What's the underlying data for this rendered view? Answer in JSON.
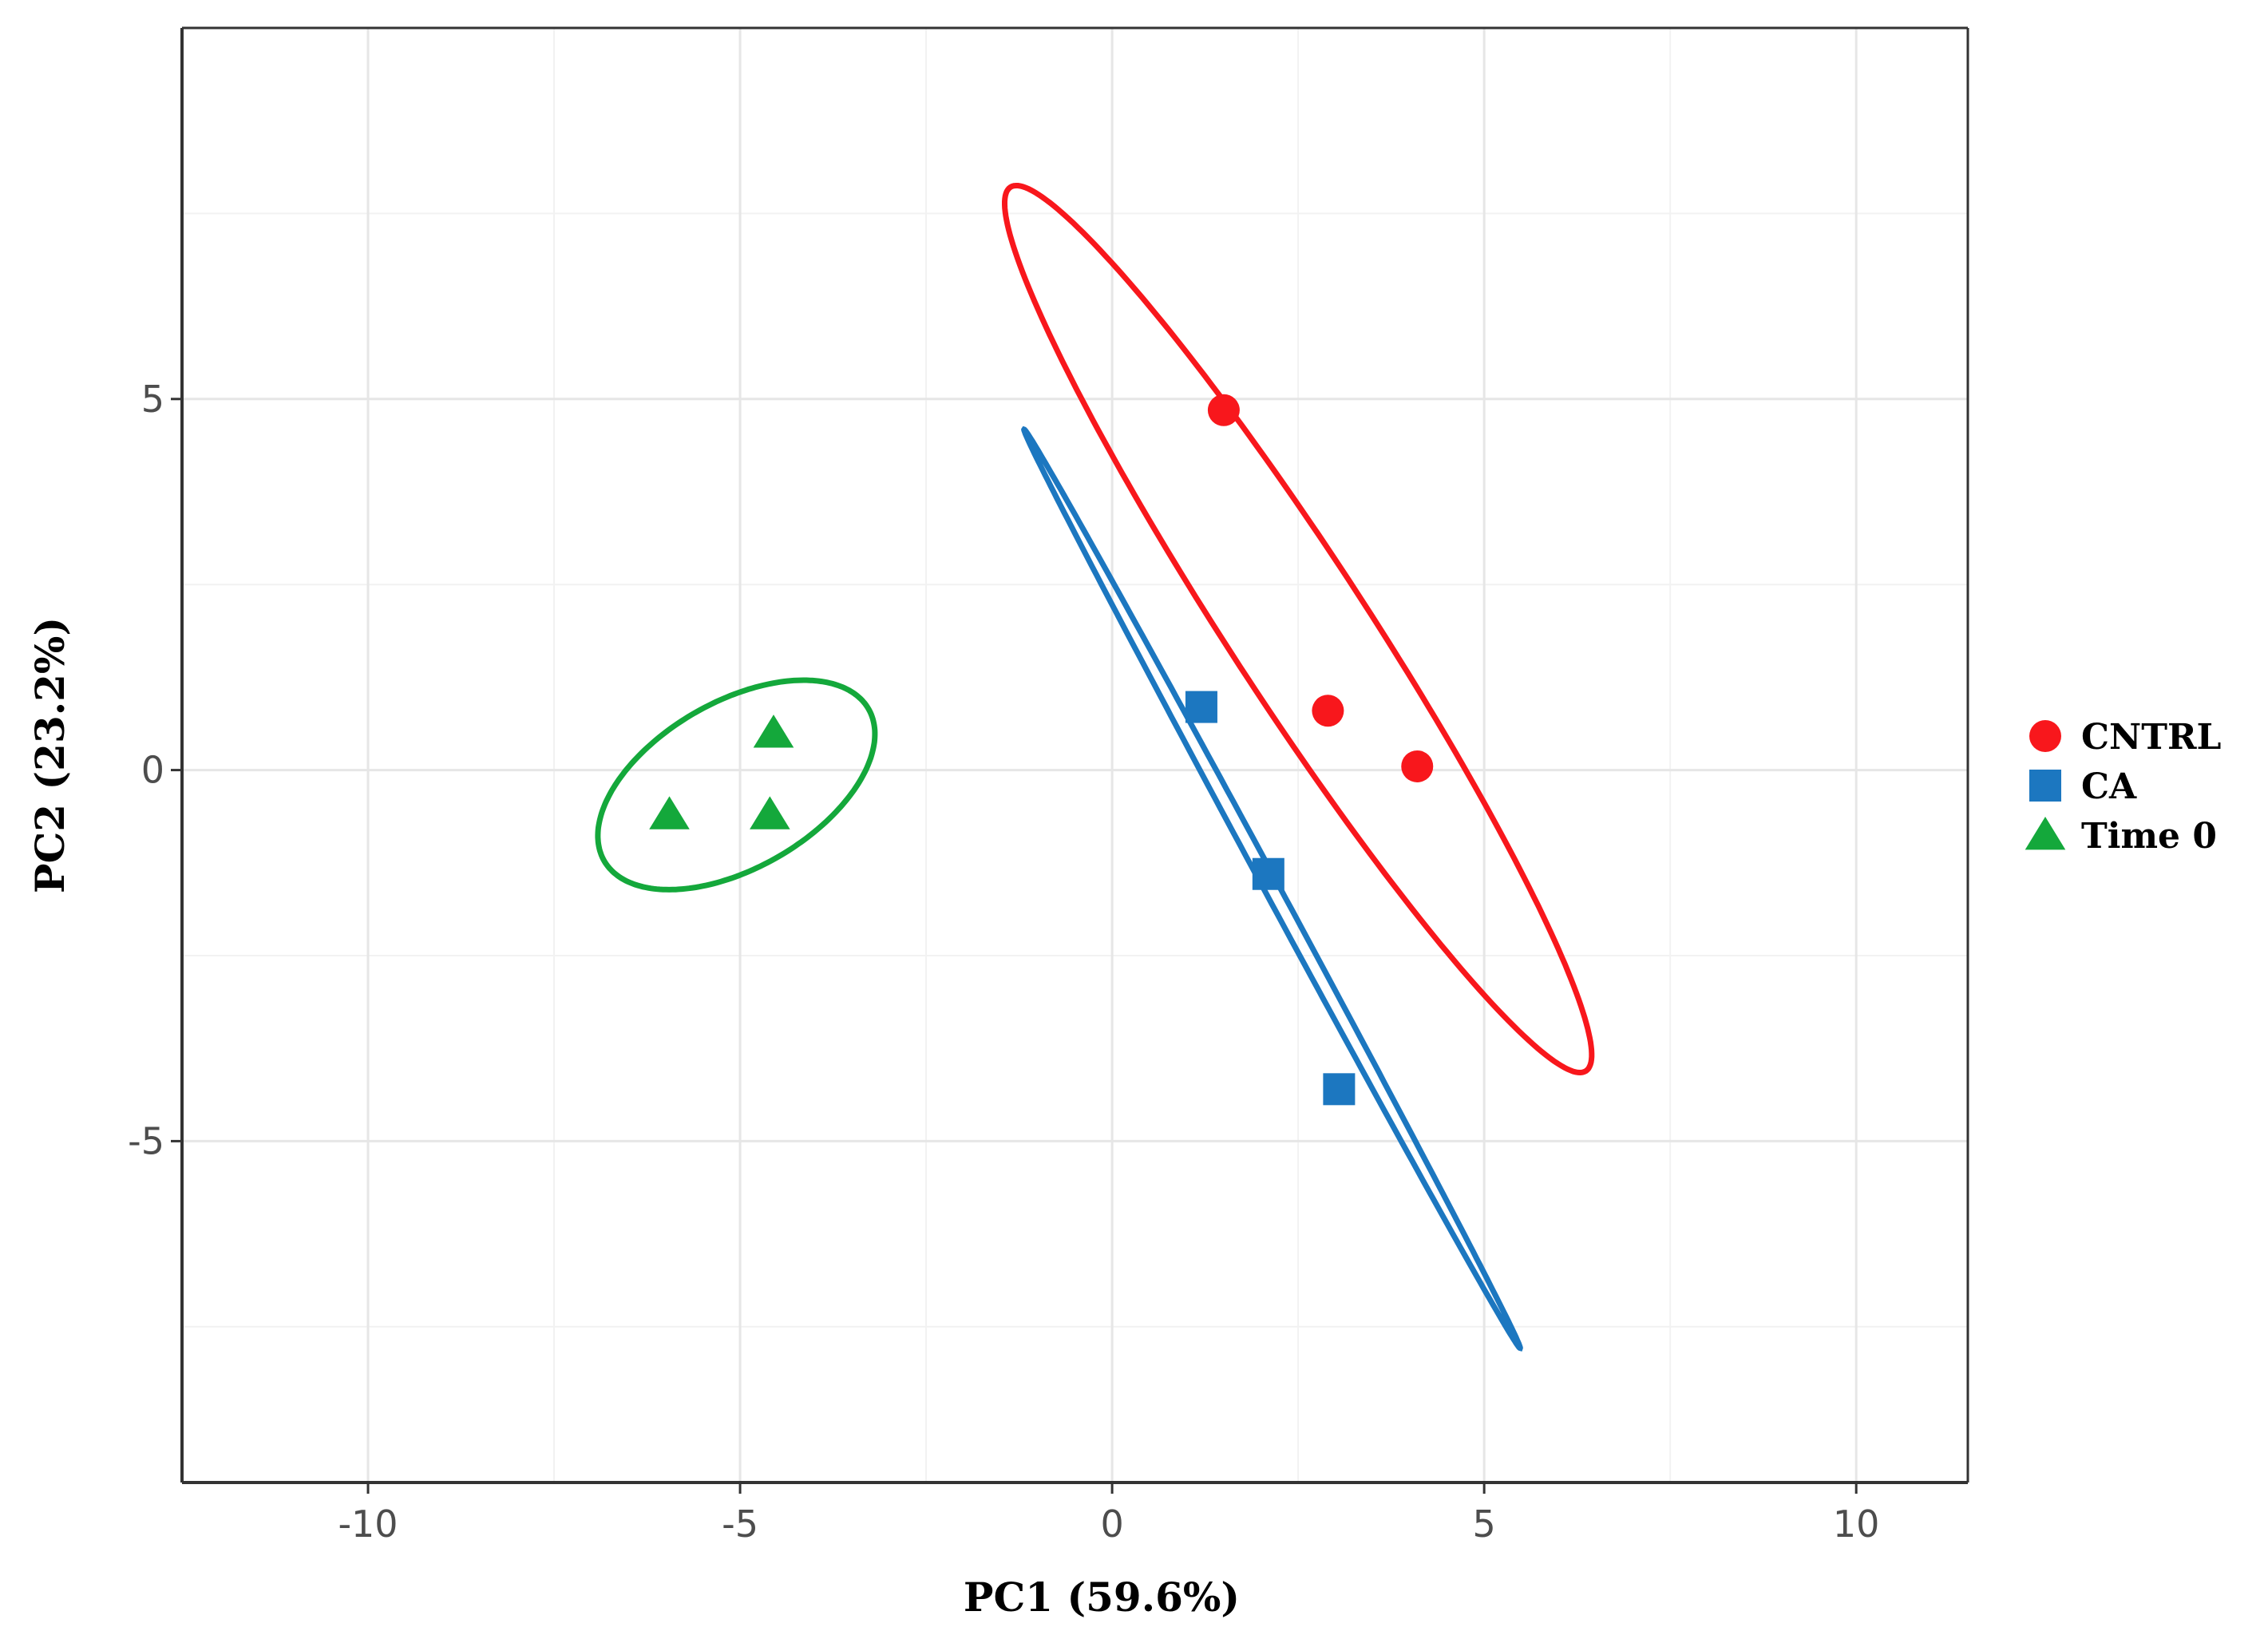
{
  "chart_data": {
    "type": "scatter",
    "title": "",
    "xlabel": "PC1 (59.6%)",
    "ylabel": "PC2 (23.2%)",
    "xlim": [
      -12.5,
      11.5
    ],
    "ylim": [
      -9.6,
      10.0
    ],
    "x_ticks": [
      -10,
      -5,
      0,
      5,
      10
    ],
    "y_ticks": [
      -5,
      0,
      5
    ],
    "x_tick_labels": [
      "-10",
      "-5",
      "0",
      "5",
      "10"
    ],
    "y_tick_labels": [
      "-5",
      "0",
      "5"
    ],
    "grid": true,
    "legend_position": "right",
    "series": [
      {
        "name": "CNTRL",
        "marker": "circle",
        "color": "#f8171c",
        "points": [
          [
            1.5,
            4.85
          ],
          [
            2.9,
            0.8
          ],
          [
            4.1,
            0.05
          ]
        ],
        "ellipse": {
          "center": [
            2.5,
            1.9
          ],
          "rx": 7.1,
          "ry": 0.93,
          "angle_deg": -57
        }
      },
      {
        "name": "CA",
        "marker": "square",
        "color": "#1c77c0",
        "points": [
          [
            1.2,
            0.85
          ],
          [
            2.1,
            -1.4
          ],
          [
            3.05,
            -4.3
          ]
        ],
        "ellipse": {
          "center": [
            2.15,
            -1.6
          ],
          "rx": 7.03,
          "ry": 0.1,
          "angle_deg": -61.7
        }
      },
      {
        "name": "Time 0",
        "marker": "triangle",
        "color": "#14a83b",
        "points": [
          [
            -5.95,
            -0.6
          ],
          [
            -4.55,
            0.5
          ],
          [
            -4.6,
            -0.6
          ]
        ],
        "ellipse": {
          "center": [
            -5.05,
            -0.2
          ],
          "rx": 2.05,
          "ry": 1.12,
          "angle_deg": 30
        }
      }
    ]
  }
}
